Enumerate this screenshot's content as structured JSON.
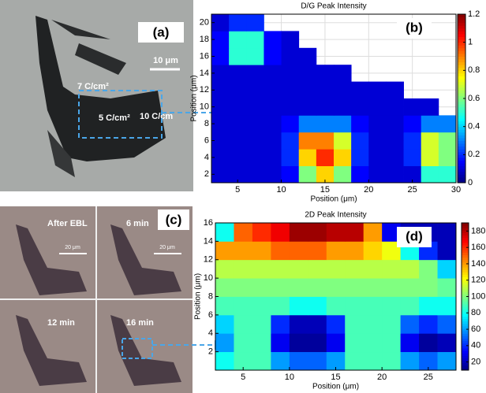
{
  "panels": {
    "a": {
      "label": "(a)",
      "scale": "10 μm",
      "doses": [
        "7 C/cm²",
        "5 C/cm²",
        "10 C/cm"
      ]
    },
    "c": {
      "label": "(c)",
      "frames": [
        "After EBL",
        "6 min",
        "12 min",
        "16 min"
      ],
      "scale": "20 μm"
    }
  },
  "chart_data": [
    {
      "type": "heatmap",
      "panel": "(b)",
      "title": "D/G Peak Intensity",
      "x_label": "Position (μm)",
      "y_label": "Position (μm)",
      "colormap": "jet",
      "grid": true,
      "xlim": [
        2,
        30
      ],
      "ylim": [
        1,
        21
      ],
      "xticks": [
        5,
        10,
        15,
        20,
        25,
        30
      ],
      "yticks": [
        2,
        4,
        6,
        8,
        10,
        12,
        14,
        16,
        18,
        20
      ],
      "zlim": [
        0,
        1.2
      ],
      "zticks": [
        0,
        0.2,
        0.4,
        0.6,
        0.8,
        1,
        1.2
      ],
      "z": [
        [
          0.1,
          0.1,
          0.1,
          0.1,
          0.15,
          0.6,
          0.8,
          0.6,
          0.15,
          0.1,
          0.1,
          0.1,
          0.5,
          0.5
        ],
        [
          0.1,
          0.1,
          0.1,
          0.1,
          0.2,
          0.8,
          1.0,
          0.8,
          0.2,
          0.1,
          0.1,
          0.2,
          0.7,
          0.6
        ],
        [
          0.1,
          0.1,
          0.1,
          0.1,
          0.2,
          0.9,
          0.9,
          0.7,
          0.2,
          0.1,
          0.1,
          0.2,
          0.7,
          0.6
        ],
        [
          0.1,
          0.1,
          0.1,
          0.1,
          0.15,
          0.3,
          0.3,
          0.3,
          0.15,
          0.1,
          0.1,
          0.15,
          0.3,
          0.3
        ],
        [
          0.1,
          0.1,
          0.1,
          0.1,
          0.1,
          0.1,
          0.1,
          0.1,
          0.1,
          0.1,
          0.1,
          0.1,
          0.1,
          null
        ],
        [
          0.1,
          0.1,
          0.1,
          0.1,
          0.1,
          0.1,
          0.1,
          0.1,
          0.1,
          0.1,
          0.1,
          null,
          null,
          null
        ],
        [
          0.1,
          0.1,
          0.1,
          0.1,
          0.1,
          0.1,
          0.1,
          0.1,
          null,
          null,
          null,
          null,
          null,
          null
        ],
        [
          0.15,
          0.5,
          0.5,
          0.15,
          0.1,
          0.1,
          null,
          null,
          null,
          null,
          null,
          null,
          null,
          null
        ],
        [
          0.15,
          0.5,
          0.5,
          0.15,
          0.1,
          null,
          null,
          null,
          null,
          null,
          null,
          null,
          null,
          null
        ],
        [
          0.1,
          0.2,
          0.2,
          null,
          null,
          null,
          null,
          null,
          null,
          null,
          null,
          null,
          null,
          null
        ]
      ]
    },
    {
      "type": "heatmap",
      "panel": "(d)",
      "title": "2D Peak Intensity",
      "x_label": "Position (μm)",
      "y_label": "Position (μm)",
      "colormap": "jet",
      "grid": false,
      "xlim": [
        2,
        28
      ],
      "ylim": [
        0,
        16
      ],
      "xticks": [
        5,
        10,
        15,
        20,
        25
      ],
      "yticks": [
        2,
        4,
        6,
        8,
        10,
        12,
        14,
        16
      ],
      "zlim": [
        10,
        190
      ],
      "zticks": [
        20,
        40,
        60,
        80,
        100,
        120,
        140,
        160,
        180
      ],
      "z": [
        [
          80,
          90,
          90,
          60,
          50,
          50,
          60,
          90,
          90,
          90,
          60,
          50,
          60
        ],
        [
          60,
          90,
          90,
          30,
          15,
          15,
          30,
          90,
          90,
          90,
          30,
          15,
          20
        ],
        [
          70,
          90,
          90,
          40,
          20,
          20,
          40,
          90,
          90,
          90,
          50,
          40,
          50
        ],
        [
          90,
          90,
          90,
          90,
          80,
          80,
          90,
          90,
          90,
          90,
          90,
          80,
          80
        ],
        [
          100,
          100,
          100,
          100,
          100,
          100,
          100,
          100,
          100,
          100,
          100,
          100,
          95
        ],
        [
          110,
          110,
          110,
          110,
          110,
          110,
          110,
          110,
          110,
          110,
          110,
          100,
          70
        ],
        [
          140,
          140,
          140,
          150,
          150,
          150,
          140,
          140,
          130,
          120,
          80,
          40,
          20
        ],
        [
          80,
          150,
          160,
          170,
          185,
          185,
          180,
          180,
          140,
          30,
          20,
          20,
          20
        ]
      ]
    }
  ]
}
